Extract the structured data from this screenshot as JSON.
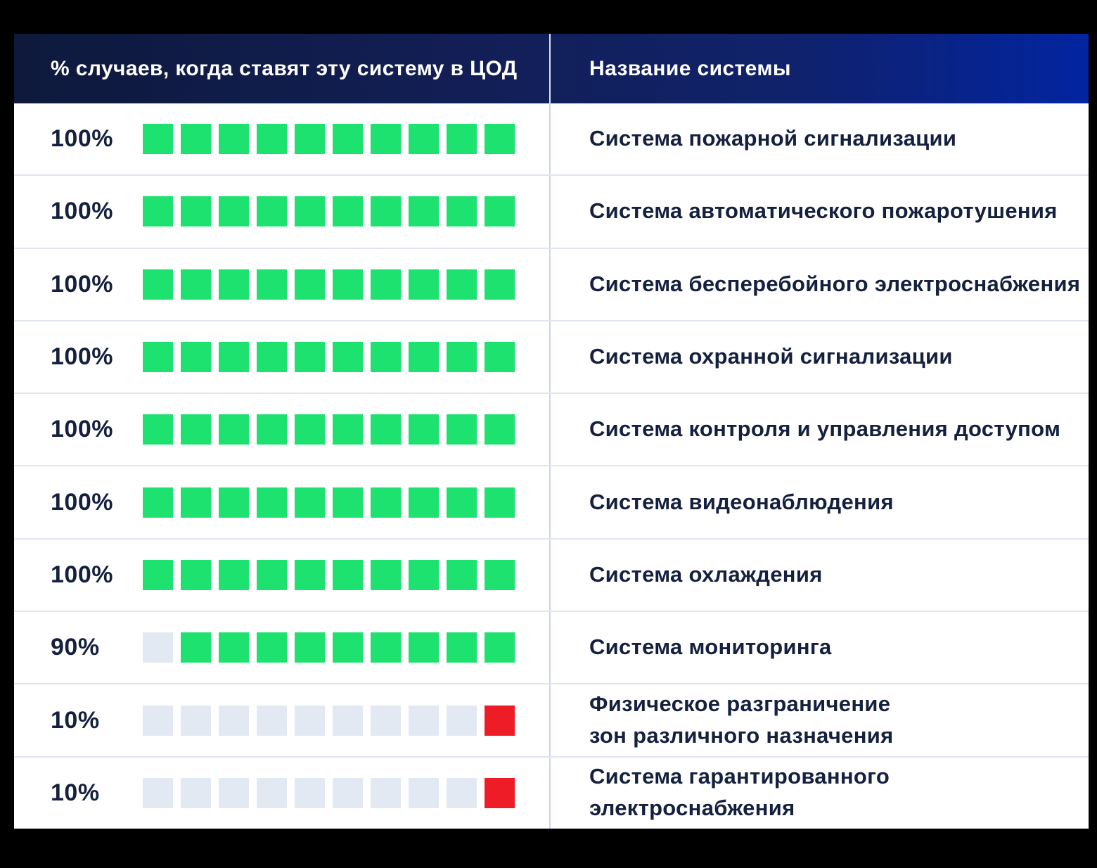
{
  "colors": {
    "green": "#1EE26F",
    "red": "#ED1C26",
    "empty": "#E3E9F2",
    "header_gradient_left": "#0E193C",
    "header_gradient_right": "#0224A0",
    "header_text": "#FFFFFF",
    "body_text": "#14203E",
    "row_background": "#FFFFFF",
    "page_background": "#000000"
  },
  "chart_data": {
    "type": "table",
    "columns": [
      "% случаев, когда ставят эту систему в ЦОД",
      "Название системы"
    ],
    "squares_per_row": 10,
    "legend_note": "waffle squares filled from the right; green = installed share, red = rare, gray = empty",
    "rows": [
      {
        "percent_label": "100%",
        "value": 100,
        "filled": 10,
        "fill": "green",
        "label": "Система пожарной сигнализации"
      },
      {
        "percent_label": "100%",
        "value": 100,
        "filled": 10,
        "fill": "green",
        "label": "Система автоматического пожаротушения"
      },
      {
        "percent_label": "100%",
        "value": 100,
        "filled": 10,
        "fill": "green",
        "label": "Система бесперебойного электроснабжения"
      },
      {
        "percent_label": "100%",
        "value": 100,
        "filled": 10,
        "fill": "green",
        "label": "Система охранной сигнализации"
      },
      {
        "percent_label": "100%",
        "value": 100,
        "filled": 10,
        "fill": "green",
        "label": "Система контроля и управления доступом"
      },
      {
        "percent_label": "100%",
        "value": 100,
        "filled": 10,
        "fill": "green",
        "label": "Система видеонаблюдения"
      },
      {
        "percent_label": "100%",
        "value": 100,
        "filled": 10,
        "fill": "green",
        "label": "Система охлаждения"
      },
      {
        "percent_label": "90%",
        "value": 90,
        "filled": 9,
        "fill": "green",
        "label": "Система мониторинга"
      },
      {
        "percent_label": "10%",
        "value": 10,
        "filled": 1,
        "fill": "red",
        "label": "Физическое разграничение\nзон различного назначения"
      },
      {
        "percent_label": "10%",
        "value": 10,
        "filled": 1,
        "fill": "red",
        "label": "Система гарантированного\nэлектроснабжения"
      }
    ]
  }
}
